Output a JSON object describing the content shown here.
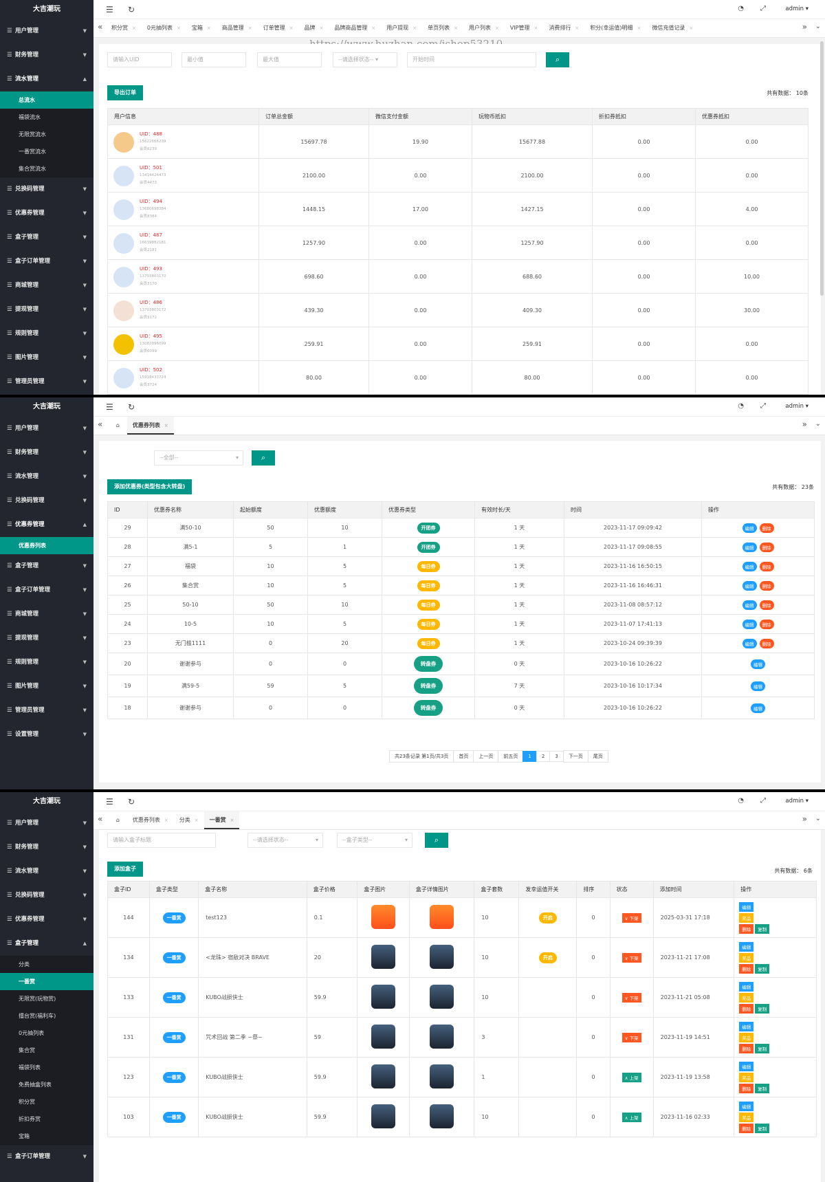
{
  "app": {
    "brand": "大吉潮玩",
    "admin": "admin"
  },
  "icons": {
    "menu": "hamburger-icon",
    "refresh": "refresh-icon",
    "theme": "palette-icon",
    "fullscreen": "fullscreen-icon",
    "home": "home-icon",
    "search": "search-icon"
  },
  "colors": {
    "accent": "#009688",
    "sidebar": "#23262e",
    "blue": "#1e9fff",
    "orange": "#ffb800",
    "red": "#ff5722"
  },
  "watermark": "https://www.huzhan.com/ishop53210",
  "p1": {
    "menu": [
      "用户管理",
      "财务管理",
      "流水管理",
      "总流水",
      "福袋流水",
      "无限赏流水",
      "一番赏流水",
      "集合赏流水",
      "兑换码管理",
      "优惠券管理",
      "盒子管理",
      "盒子订单管理",
      "商城管理",
      "提现管理",
      "规则管理",
      "图片管理",
      "管理员管理"
    ],
    "tabs": [
      "积分赏",
      "0元抽列表",
      "宝箱",
      "商品管理",
      "订单管理",
      "品牌",
      "品牌商品管理",
      "用户提现",
      "单页列表",
      "用户列表",
      "VIP管理",
      "消费排行",
      "积分(幸运值)明细",
      "微信充值记录"
    ],
    "filters": {
      "uid": "请输入UID",
      "min": "最小值",
      "max": "最大值",
      "status": "--请选择状态--",
      "time": "开始时间"
    },
    "export": "导出订单",
    "total": "共有数据： 10条",
    "headers": [
      "用户信息",
      "订单总金额",
      "微信支付金额",
      "玩物币抵扣",
      "折扣券抵扣",
      "优惠券抵扣"
    ],
    "rows": [
      [
        "UID：488",
        "15622666239",
        "会员6239",
        "15697.78",
        "19.90",
        "15677.88",
        "0.00",
        "0.00"
      ],
      [
        "UID：501",
        "13414424473",
        "会员4473",
        "2100.00",
        "0.00",
        "2100.00",
        "0.00",
        "0.00"
      ],
      [
        "UID：494",
        "13680698384",
        "会员8384",
        "1448.15",
        "17.00",
        "1427.15",
        "0.00",
        "4.00"
      ],
      [
        "UID：487",
        "16639882181",
        "会员2181",
        "1257.90",
        "0.00",
        "1257.90",
        "0.00",
        "0.00"
      ],
      [
        "UID：493",
        "13703803170",
        "会员3170",
        "698.60",
        "0.00",
        "688.60",
        "0.00",
        "10.00"
      ],
      [
        "UID：486",
        "13703803172",
        "会员3172",
        "439.30",
        "0.00",
        "409.30",
        "0.00",
        "30.00"
      ],
      [
        "UID：495",
        "13082096099",
        "会员6099",
        "259.91",
        "0.00",
        "259.91",
        "0.00",
        "0.00"
      ],
      [
        "UID：502",
        "15918433724",
        "会员3724",
        "80.00",
        "0.00",
        "80.00",
        "0.00",
        "0.00"
      ]
    ]
  },
  "p2": {
    "menu": [
      "用户管理",
      "财务管理",
      "流水管理",
      "兑换码管理",
      "优惠券管理",
      "优惠券列表",
      "盒子管理",
      "盒子订单管理",
      "商城管理",
      "提现管理",
      "规则管理",
      "图片管理",
      "管理员管理",
      "设置管理"
    ],
    "tab": "优惠券列表",
    "select": "--全部--",
    "add": "添加优惠券(类型包含大转盘)",
    "total": "共有数据： 23条",
    "headers": [
      "ID",
      "优惠券名称",
      "起始额度",
      "优惠额度",
      "优惠券类型",
      "有效时长/天",
      "时间",
      "操作"
    ],
    "rows": [
      [
        "29",
        "满50-10",
        "50",
        "10",
        "开团券",
        "1 天",
        "2023-11-17 09:09:42"
      ],
      [
        "28",
        "满5-1",
        "5",
        "1",
        "开团券",
        "1 天",
        "2023-11-17 09:08:55"
      ],
      [
        "27",
        "福袋",
        "10",
        "5",
        "每日券",
        "1 天",
        "2023-11-16 16:50:15"
      ],
      [
        "26",
        "集合赏",
        "10",
        "5",
        "每日券",
        "1 天",
        "2023-11-16 16:46:31"
      ],
      [
        "25",
        "50-10",
        "50",
        "10",
        "每日券",
        "1 天",
        "2023-11-08 08:57:12"
      ],
      [
        "24",
        "10-5",
        "10",
        "5",
        "每日券",
        "1 天",
        "2023-11-07 17:41:13"
      ],
      [
        "23",
        "无门槛1111",
        "0",
        "20",
        "每日券",
        "1 天",
        "2023-10-24 09:39:39"
      ],
      [
        "20",
        "谢谢参与",
        "0",
        "0",
        "转盘券",
        "0 天",
        "2023-10-16 10:26:22"
      ],
      [
        "19",
        "满59-5",
        "59",
        "5",
        "转盘券",
        "7 天",
        "2023-10-16 10:17:34"
      ],
      [
        "18",
        "谢谢参与",
        "0",
        "0",
        "转盘券",
        "0 天",
        "2023-10-16 10:26:22"
      ]
    ],
    "edit": "编辑",
    "del": "删除",
    "pager": [
      "共23条记录 第1页/共3页",
      "首页",
      "上一页",
      "前五页",
      "1",
      "2",
      "3",
      "下一页",
      "尾页"
    ]
  },
  "p3": {
    "menu": [
      "用户管理",
      "财务管理",
      "流水管理",
      "兑换码管理",
      "优惠券管理",
      "盒子管理",
      "分类",
      "一番赏",
      "无限赏(玩物赏)",
      "擂台赏(福利车)",
      "0元抽列表",
      "集合赏",
      "福袋列表",
      "免费抽盒列表",
      "积分赏",
      "折扣券赏",
      "宝箱",
      "盒子订单管理"
    ],
    "tabs": [
      "优惠券列表",
      "分类",
      "一番赏"
    ],
    "filters": {
      "title": "请输入盒子标题",
      "status": "--请选择状态--",
      "type": "--盒子类型--"
    },
    "add": "添加盒子",
    "total": "共有数据： 6条",
    "headers": [
      "盒子ID",
      "盒子类型",
      "盒子名称",
      "盒子价格",
      "盒子图片",
      "盒子详情图片",
      "盒子套数",
      "发幸运值开关",
      "排序",
      "状态",
      "添加时间",
      "操作"
    ],
    "rows": [
      [
        "144",
        "一番赏",
        "test123",
        "0.1",
        "10",
        "开启",
        "0",
        "下架",
        "2025-03-31 17:18"
      ],
      [
        "134",
        "一番赏",
        "<龙珠> 宿敌对决 BRAVE",
        "20",
        "10",
        "开启",
        "0",
        "下架",
        "2023-11-21 17:08"
      ],
      [
        "133",
        "一番赏",
        "KUBO战损侠士",
        "59.9",
        "10",
        "",
        "0",
        "下架",
        "2023-11-21 05:08"
      ],
      [
        "131",
        "一番赏",
        "咒术回战 第二季 ~祭~",
        "59",
        "3",
        "",
        "0",
        "下架",
        "2023-11-19 14:51"
      ],
      [
        "123",
        "一番赏",
        "KUBO战损侠士",
        "59.9",
        "1",
        "",
        "0",
        "上架",
        "2023-11-19 13:58"
      ],
      [
        "103",
        "一番赏",
        "KUBO战损侠士",
        "59.9",
        "10",
        "",
        "0",
        "上架",
        "2023-11-16 02:33"
      ]
    ],
    "ops": [
      "编辑",
      "奖品",
      "删除",
      "复制"
    ]
  }
}
